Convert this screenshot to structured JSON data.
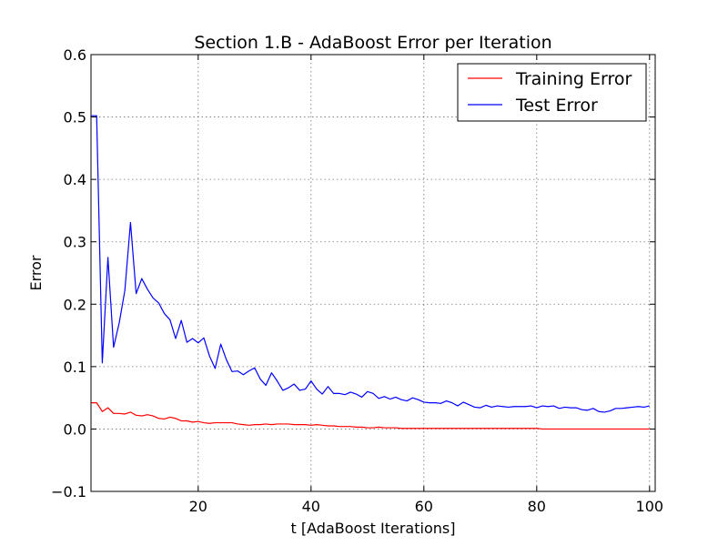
{
  "chart_data": {
    "type": "line",
    "title": "Section 1.B - AdaBoost Error per Iteration",
    "xlabel": "t [AdaBoost Iterations]",
    "ylabel": "Error",
    "xlim": [
      1,
      101
    ],
    "ylim": [
      -0.1,
      0.6
    ],
    "xticks": [
      20,
      40,
      60,
      80,
      100
    ],
    "yticks": [
      -0.1,
      0.0,
      0.1,
      0.2,
      0.3,
      0.4,
      0.5,
      0.6
    ],
    "grid": true,
    "legend_position": "top-right",
    "series": [
      {
        "name": "Training Error",
        "color": "#ff0000",
        "x": [
          1,
          2,
          3,
          4,
          5,
          6,
          7,
          8,
          9,
          10,
          11,
          12,
          13,
          14,
          15,
          16,
          17,
          18,
          19,
          20,
          21,
          22,
          23,
          24,
          25,
          26,
          27,
          28,
          29,
          30,
          31,
          32,
          33,
          34,
          35,
          36,
          37,
          38,
          39,
          40,
          41,
          42,
          43,
          44,
          45,
          46,
          47,
          48,
          49,
          50,
          51,
          52,
          53,
          54,
          55,
          56,
          57,
          58,
          59,
          60,
          61,
          62,
          63,
          64,
          65,
          66,
          67,
          68,
          69,
          70,
          71,
          72,
          73,
          74,
          75,
          76,
          77,
          78,
          79,
          80,
          81,
          82,
          83,
          84,
          85,
          86,
          87,
          88,
          89,
          90,
          91,
          92,
          93,
          94,
          95,
          96,
          97,
          98,
          99,
          100
        ],
        "y": [
          0.042,
          0.042,
          0.028,
          0.034,
          0.025,
          0.025,
          0.024,
          0.027,
          0.022,
          0.021,
          0.023,
          0.021,
          0.017,
          0.016,
          0.019,
          0.017,
          0.013,
          0.013,
          0.011,
          0.012,
          0.01,
          0.009,
          0.01,
          0.01,
          0.01,
          0.01,
          0.008,
          0.007,
          0.006,
          0.007,
          0.007,
          0.008,
          0.007,
          0.008,
          0.008,
          0.008,
          0.007,
          0.007,
          0.007,
          0.006,
          0.007,
          0.006,
          0.005,
          0.005,
          0.004,
          0.004,
          0.004,
          0.003,
          0.003,
          0.002,
          0.002,
          0.003,
          0.002,
          0.002,
          0.002,
          0.001,
          0.001,
          0.001,
          0.001,
          0.001,
          0.001,
          0.001,
          0.001,
          0.001,
          0.001,
          0.001,
          0.001,
          0.001,
          0.001,
          0.001,
          0.001,
          0.001,
          0.001,
          0.001,
          0.001,
          0.001,
          0.001,
          0.001,
          0.001,
          0.001,
          0.0,
          0.0,
          0.0,
          0.0,
          0.0,
          0.0,
          0.0,
          0.0,
          0.0,
          0.0,
          0.0,
          0.0,
          0.0,
          0.0,
          0.0,
          0.0,
          0.0,
          0.0,
          0.0,
          0.0
        ]
      },
      {
        "name": "Test Error",
        "color": "#0000ff",
        "x": [
          1,
          2,
          3,
          4,
          5,
          6,
          7,
          8,
          9,
          10,
          11,
          12,
          13,
          14,
          15,
          16,
          17,
          18,
          19,
          20,
          21,
          22,
          23,
          24,
          25,
          26,
          27,
          28,
          29,
          30,
          31,
          32,
          33,
          34,
          35,
          36,
          37,
          38,
          39,
          40,
          41,
          42,
          43,
          44,
          45,
          46,
          47,
          48,
          49,
          50,
          51,
          52,
          53,
          54,
          55,
          56,
          57,
          58,
          59,
          60,
          61,
          62,
          63,
          64,
          65,
          66,
          67,
          68,
          69,
          70,
          71,
          72,
          73,
          74,
          75,
          76,
          77,
          78,
          79,
          80,
          81,
          82,
          83,
          84,
          85,
          86,
          87,
          88,
          89,
          90,
          91,
          92,
          93,
          94,
          95,
          96,
          97,
          98,
          99,
          100
        ],
        "y": [
          0.502,
          0.502,
          0.106,
          0.275,
          0.131,
          0.17,
          0.222,
          0.331,
          0.217,
          0.241,
          0.224,
          0.21,
          0.202,
          0.185,
          0.175,
          0.145,
          0.174,
          0.139,
          0.145,
          0.138,
          0.146,
          0.117,
          0.097,
          0.136,
          0.111,
          0.092,
          0.093,
          0.087,
          0.093,
          0.098,
          0.08,
          0.07,
          0.09,
          0.077,
          0.062,
          0.066,
          0.072,
          0.062,
          0.064,
          0.077,
          0.064,
          0.056,
          0.068,
          0.057,
          0.057,
          0.055,
          0.059,
          0.056,
          0.051,
          0.06,
          0.057,
          0.049,
          0.052,
          0.048,
          0.051,
          0.047,
          0.045,
          0.05,
          0.047,
          0.043,
          0.042,
          0.042,
          0.041,
          0.045,
          0.042,
          0.037,
          0.043,
          0.039,
          0.035,
          0.034,
          0.038,
          0.035,
          0.037,
          0.036,
          0.035,
          0.036,
          0.036,
          0.036,
          0.037,
          0.034,
          0.037,
          0.036,
          0.037,
          0.033,
          0.035,
          0.034,
          0.034,
          0.031,
          0.03,
          0.033,
          0.028,
          0.027,
          0.029,
          0.033,
          0.033,
          0.034,
          0.035,
          0.036,
          0.035,
          0.037
        ]
      }
    ]
  }
}
